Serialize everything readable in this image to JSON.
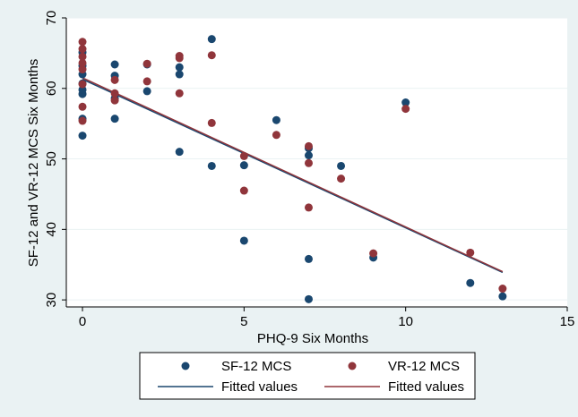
{
  "chart_data": {
    "type": "scatter",
    "xlabel": "PHQ-9 Six Months",
    "ylabel": "SF-12 and VR-12 MCS Six Months",
    "xlim": [
      -0.5,
      15
    ],
    "ylim": [
      29,
      70
    ],
    "x_ticks": [
      "0",
      "5",
      "10",
      "15"
    ],
    "y_ticks": [
      "30",
      "40",
      "50",
      "60",
      "70"
    ],
    "grid": true,
    "legend_position": "bottom",
    "series": [
      {
        "name": "SF-12 MCS",
        "kind": "scatter",
        "color": "#1a476f",
        "points": [
          [
            0,
            53.3
          ],
          [
            0,
            55.7
          ],
          [
            0,
            59.2
          ],
          [
            0,
            59.8
          ],
          [
            0,
            60.7
          ],
          [
            0,
            62
          ],
          [
            0,
            63.2
          ],
          [
            0,
            65.1
          ],
          [
            1,
            55.7
          ],
          [
            1,
            58.6
          ],
          [
            1,
            61.8
          ],
          [
            1,
            63.4
          ],
          [
            2,
            59.6
          ],
          [
            2,
            63.4
          ],
          [
            3,
            51
          ],
          [
            3,
            62
          ],
          [
            3,
            63
          ],
          [
            4,
            49
          ],
          [
            4,
            67
          ],
          [
            5,
            38.4
          ],
          [
            5,
            49.1
          ],
          [
            6,
            55.5
          ],
          [
            7,
            30.1
          ],
          [
            7,
            35.8
          ],
          [
            7,
            50.5
          ],
          [
            7,
            51.5
          ],
          [
            8,
            49
          ],
          [
            9,
            36
          ],
          [
            10,
            58
          ],
          [
            12,
            32.4
          ],
          [
            13,
            30.5
          ]
        ]
      },
      {
        "name": "VR-12 MCS",
        "kind": "scatter",
        "color": "#90353b",
        "points": [
          [
            0,
            55.4
          ],
          [
            0,
            57.4
          ],
          [
            0,
            60.6
          ],
          [
            0,
            62.7
          ],
          [
            0,
            63.6
          ],
          [
            0,
            64.5
          ],
          [
            0,
            65.6
          ],
          [
            0,
            66.6
          ],
          [
            1,
            58.3
          ],
          [
            1,
            59.3
          ],
          [
            1,
            61.2
          ],
          [
            2,
            61
          ],
          [
            2,
            63.5
          ],
          [
            3,
            59.3
          ],
          [
            3,
            64.3
          ],
          [
            3,
            64.6
          ],
          [
            4,
            55.1
          ],
          [
            4,
            64.7
          ],
          [
            5,
            45.5
          ],
          [
            5,
            50.4
          ],
          [
            6,
            53.4
          ],
          [
            7,
            43.1
          ],
          [
            7,
            49.4
          ],
          [
            7,
            51.8
          ],
          [
            8,
            47.2
          ],
          [
            9,
            36.6
          ],
          [
            10,
            57.1
          ],
          [
            12,
            36.7
          ],
          [
            13,
            31.6
          ]
        ]
      },
      {
        "name": "Fitted values",
        "kind": "line",
        "color": "#1a476f",
        "points": [
          [
            0,
            61.3
          ],
          [
            13,
            33.9
          ]
        ]
      },
      {
        "name": "Fitted values",
        "kind": "line",
        "color": "#90353b",
        "points": [
          [
            0,
            61.5
          ],
          [
            13,
            34
          ]
        ]
      }
    ]
  },
  "legend": {
    "items": [
      {
        "label": "SF-12 MCS",
        "marker": "dot",
        "color": "#1a476f"
      },
      {
        "label": "VR-12 MCS",
        "marker": "dot",
        "color": "#90353b"
      },
      {
        "label": "Fitted values",
        "marker": "line",
        "color": "#1a476f"
      },
      {
        "label": "Fitted values",
        "marker": "line",
        "color": "#90353b"
      }
    ]
  },
  "colors": {
    "background": "#eaf2f3",
    "plot_background": "#ffffff",
    "grid": "#eaf2f3"
  }
}
